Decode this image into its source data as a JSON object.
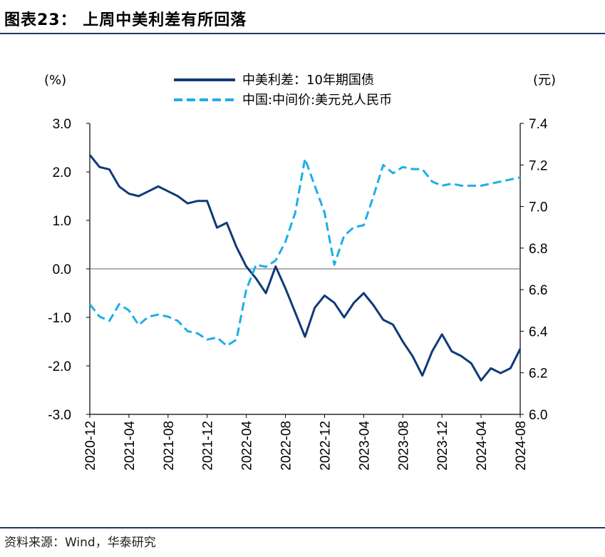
{
  "header": {
    "title": "图表23： 上周中美利差有所回落"
  },
  "footer": {
    "source": "资料来源：Wind，华泰研究"
  },
  "chart_data": {
    "type": "line",
    "title": "图表23： 上周中美利差有所回落",
    "left_unit": "(%)",
    "right_unit": "(元)",
    "y_left": {
      "min": -3.0,
      "max": 3.0,
      "ticks": [
        "3.0",
        "2.0",
        "1.0",
        "0.0",
        "-1.0",
        "-2.0",
        "-3.0"
      ]
    },
    "y_right": {
      "min": 6.0,
      "max": 7.4,
      "ticks": [
        "7.4",
        "7.2",
        "7.0",
        "6.8",
        "6.6",
        "6.4",
        "6.2",
        "6.0"
      ]
    },
    "x_ticks": [
      "2020-12",
      "2021-04",
      "2021-08",
      "2021-12",
      "2022-04",
      "2022-08",
      "2022-12",
      "2023-04",
      "2023-08",
      "2023-12",
      "2024-04",
      "2024-08"
    ],
    "legend_position": "top-center",
    "series": [
      {
        "name": "中美利差：10年期国债",
        "axis": "left",
        "color": "#0f3a78",
        "style": "solid",
        "points": [
          [
            "2020-12",
            2.35
          ],
          [
            "2021-01",
            2.1
          ],
          [
            "2021-02",
            2.05
          ],
          [
            "2021-03",
            1.7
          ],
          [
            "2021-04",
            1.55
          ],
          [
            "2021-05",
            1.5
          ],
          [
            "2021-06",
            1.6
          ],
          [
            "2021-07",
            1.7
          ],
          [
            "2021-08",
            1.6
          ],
          [
            "2021-09",
            1.5
          ],
          [
            "2021-10",
            1.35
          ],
          [
            "2021-11",
            1.4
          ],
          [
            "2021-12",
            1.4
          ],
          [
            "2022-01",
            0.85
          ],
          [
            "2022-02",
            0.95
          ],
          [
            "2022-03",
            0.45
          ],
          [
            "2022-04",
            0.05
          ],
          [
            "2022-05",
            -0.2
          ],
          [
            "2022-06",
            -0.5
          ],
          [
            "2022-07",
            0.05
          ],
          [
            "2022-08",
            -0.4
          ],
          [
            "2022-09",
            -0.9
          ],
          [
            "2022-10",
            -1.4
          ],
          [
            "2022-11",
            -0.8
          ],
          [
            "2022-12",
            -0.55
          ],
          [
            "2023-01",
            -0.7
          ],
          [
            "2023-02",
            -1.0
          ],
          [
            "2023-03",
            -0.7
          ],
          [
            "2023-04",
            -0.5
          ],
          [
            "2023-05",
            -0.75
          ],
          [
            "2023-06",
            -1.05
          ],
          [
            "2023-07",
            -1.15
          ],
          [
            "2023-08",
            -1.5
          ],
          [
            "2023-09",
            -1.8
          ],
          [
            "2023-10",
            -2.2
          ],
          [
            "2023-11",
            -1.7
          ],
          [
            "2023-12",
            -1.35
          ],
          [
            "2024-01",
            -1.7
          ],
          [
            "2024-02",
            -1.8
          ],
          [
            "2024-03",
            -1.95
          ],
          [
            "2024-04",
            -2.3
          ],
          [
            "2024-05",
            -2.05
          ],
          [
            "2024-06",
            -2.15
          ],
          [
            "2024-07",
            -2.05
          ],
          [
            "2024-08",
            -1.65
          ]
        ]
      },
      {
        "name": "中国:中间价:美元兑人民币",
        "axis": "right",
        "color": "#1eaee8",
        "style": "dashed",
        "points": [
          [
            "2020-12",
            6.53
          ],
          [
            "2021-01",
            6.47
          ],
          [
            "2021-02",
            6.45
          ],
          [
            "2021-03",
            6.53
          ],
          [
            "2021-04",
            6.5
          ],
          [
            "2021-05",
            6.43
          ],
          [
            "2021-06",
            6.47
          ],
          [
            "2021-07",
            6.48
          ],
          [
            "2021-08",
            6.47
          ],
          [
            "2021-09",
            6.45
          ],
          [
            "2021-10",
            6.4
          ],
          [
            "2021-11",
            6.39
          ],
          [
            "2021-12",
            6.36
          ],
          [
            "2022-01",
            6.37
          ],
          [
            "2022-02",
            6.33
          ],
          [
            "2022-03",
            6.36
          ],
          [
            "2022-04",
            6.6
          ],
          [
            "2022-05",
            6.72
          ],
          [
            "2022-06",
            6.71
          ],
          [
            "2022-07",
            6.74
          ],
          [
            "2022-08",
            6.83
          ],
          [
            "2022-09",
            6.97
          ],
          [
            "2022-10",
            7.23
          ],
          [
            "2022-11",
            7.1
          ],
          [
            "2022-12",
            6.97
          ],
          [
            "2023-01",
            6.72
          ],
          [
            "2023-02",
            6.86
          ],
          [
            "2023-03",
            6.9
          ],
          [
            "2023-04",
            6.91
          ],
          [
            "2023-05",
            7.05
          ],
          [
            "2023-06",
            7.2
          ],
          [
            "2023-07",
            7.16
          ],
          [
            "2023-08",
            7.19
          ],
          [
            "2023-09",
            7.18
          ],
          [
            "2023-10",
            7.18
          ],
          [
            "2023-11",
            7.12
          ],
          [
            "2023-12",
            7.1
          ],
          [
            "2024-01",
            7.11
          ],
          [
            "2024-02",
            7.1
          ],
          [
            "2024-03",
            7.1
          ],
          [
            "2024-04",
            7.1
          ],
          [
            "2024-05",
            7.11
          ],
          [
            "2024-06",
            7.12
          ],
          [
            "2024-07",
            7.13
          ],
          [
            "2024-08",
            7.14
          ]
        ]
      }
    ]
  }
}
